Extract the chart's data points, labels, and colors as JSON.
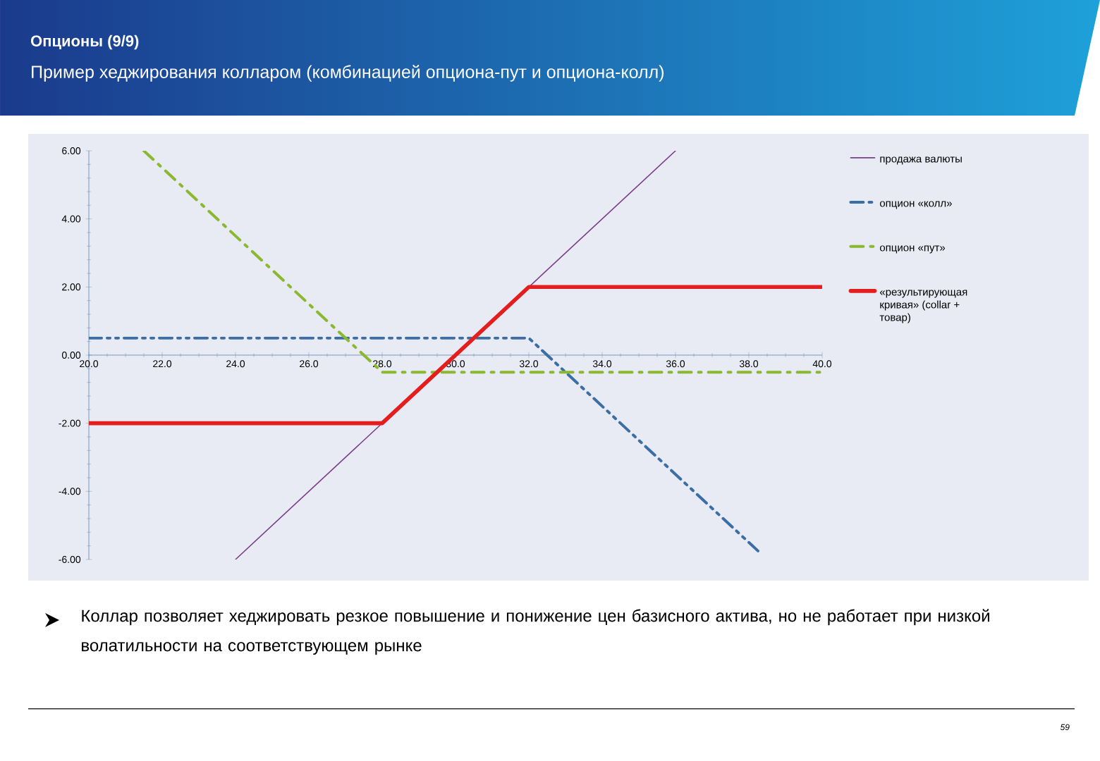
{
  "chart_data": {
    "type": "line",
    "title": "Опционы (9/9)",
    "subtitle": "Пример хеджирования колларом (комбинацией опциона-пут и опциона-колл)",
    "xlim": [
      20,
      40
    ],
    "ylim": [
      -6,
      6
    ],
    "xticks": [
      {
        "value": 20,
        "label": "20.0"
      },
      {
        "value": 22,
        "label": "22.0"
      },
      {
        "value": 24,
        "label": "24.0"
      },
      {
        "value": 26,
        "label": "26.0"
      },
      {
        "value": 28,
        "label": "28.0"
      },
      {
        "value": 30,
        "label": "30.0"
      },
      {
        "value": 32,
        "label": "32.0"
      },
      {
        "value": 34,
        "label": "34.0"
      },
      {
        "value": 36,
        "label": "36.0"
      },
      {
        "value": 38,
        "label": "38.0"
      },
      {
        "value": 40,
        "label": "40.0"
      }
    ],
    "yticks": [
      {
        "value": -6,
        "label": "-6.00"
      },
      {
        "value": -4,
        "label": "-4.00"
      },
      {
        "value": -2,
        "label": "-2.00"
      },
      {
        "value": 0,
        "label": "0.00"
      },
      {
        "value": 2,
        "label": "2.00"
      },
      {
        "value": 4,
        "label": "4.00"
      },
      {
        "value": 6,
        "label": "6.00"
      }
    ],
    "series": [
      {
        "name": "продажа валюты",
        "color": "#7b3f8c",
        "line_style": "solid",
        "x": [
          24,
          36
        ],
        "values": [
          -6,
          6
        ]
      },
      {
        "name": "опцион «колл»",
        "color": "#3a6ea5",
        "line_style": "dashdotdot",
        "x": [
          20,
          32,
          38.25
        ],
        "values": [
          0.5,
          0.5,
          -5.75
        ]
      },
      {
        "name": "опцион «пут»",
        "color": "#8ab82e",
        "line_style": "dashdot",
        "x": [
          21.5,
          28,
          40
        ],
        "values": [
          6,
          -0.5,
          -0.5
        ]
      },
      {
        "name": "«результирующая кривая» (collar + товар)",
        "color": "#e41e1e",
        "line_style": "solid",
        "x": [
          20,
          28,
          32,
          40
        ],
        "values": [
          -2,
          -2,
          2,
          2
        ]
      }
    ],
    "grid": false,
    "legend": "right",
    "marker": "none",
    "annotations": [
      "Коллар позволяет хеджировать резкое повышение и понижение цен базисного актива, но не работает при низкой волатильности на соответствующем рынке",
      "59"
    ]
  }
}
